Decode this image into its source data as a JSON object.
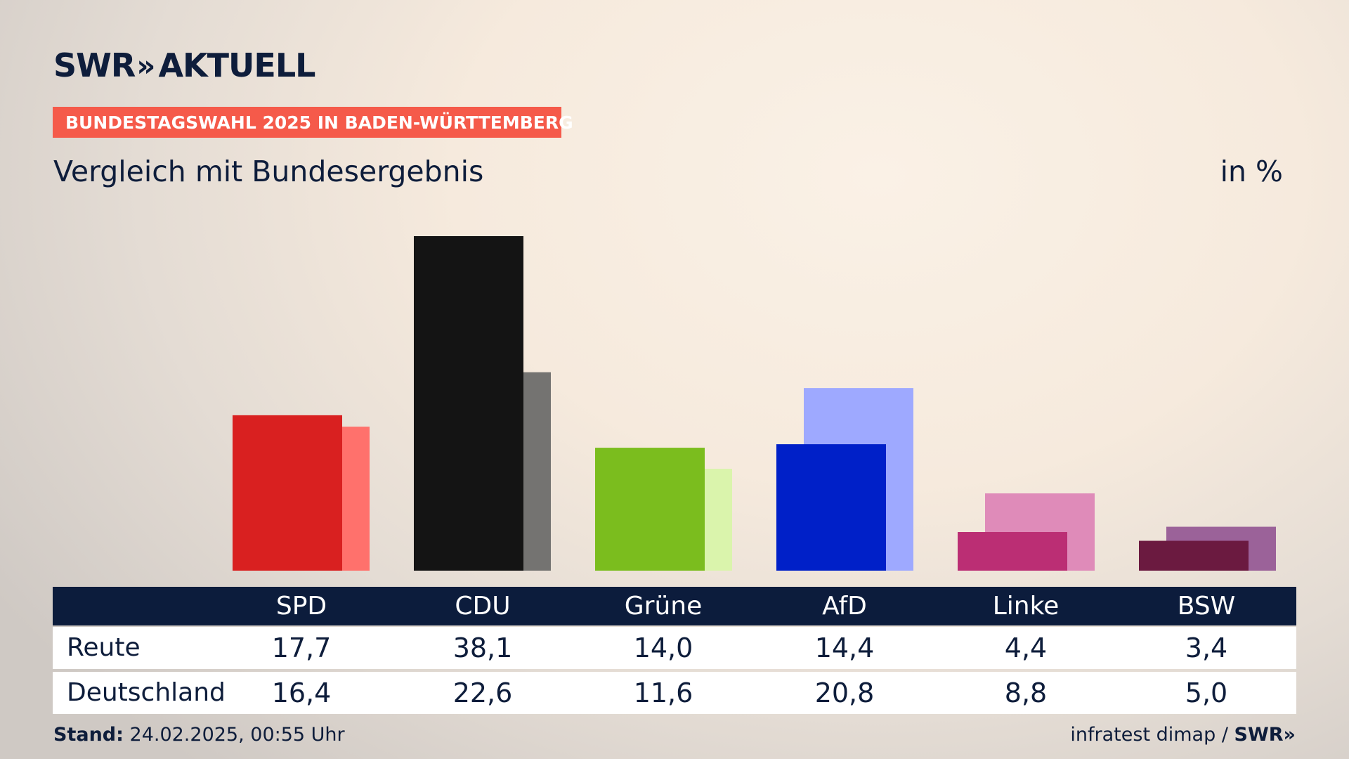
{
  "header": {
    "logo_brand": "SWR",
    "logo_chevrons": "»",
    "logo_product": "AKTUELL",
    "badge": "BUNDESTAGSWAHL 2025 IN BADEN-WÜRTTEMBERG",
    "subtitle": "Vergleich mit Bundesergebnis",
    "unit": "in %"
  },
  "colors": {
    "badge_bg": "#f55a4a",
    "table_head_bg": "#0c1c3c",
    "text": "#0e1d3b"
  },
  "chart_data": {
    "type": "bar",
    "categories": [
      "SPD",
      "CDU",
      "Grüne",
      "AfD",
      "Linke",
      "BSW"
    ],
    "series": [
      {
        "name": "Reute",
        "values": [
          17.7,
          38.1,
          14.0,
          14.4,
          4.4,
          3.4
        ],
        "colors": [
          "#d92020",
          "#141414",
          "#7bbd1e",
          "#0020c8",
          "#bb2e74",
          "#6b1a40"
        ]
      },
      {
        "name": "Deutschland",
        "values": [
          16.4,
          22.6,
          11.6,
          20.8,
          8.8,
          5.0
        ],
        "colors": [
          "#ff716c",
          "#747371",
          "#daf4ac",
          "#9ea9ff",
          "#df8bb9",
          "#9b6299"
        ]
      }
    ],
    "value_labels": {
      "Reute": [
        "17,7",
        "38,1",
        "14,0",
        "14,4",
        "4,4",
        "3,4"
      ],
      "Deutschland": [
        "16,4",
        "22,6",
        "11,6",
        "20,8",
        "8,8",
        "5,0"
      ]
    },
    "ylabel": "in %",
    "ylim": [
      0,
      38.1
    ],
    "grid": false
  },
  "footer": {
    "stand_label": "Stand:",
    "stand_value": "24.02.2025, 00:55 Uhr",
    "source": "infratest dimap /",
    "source_logo": "SWR»"
  }
}
